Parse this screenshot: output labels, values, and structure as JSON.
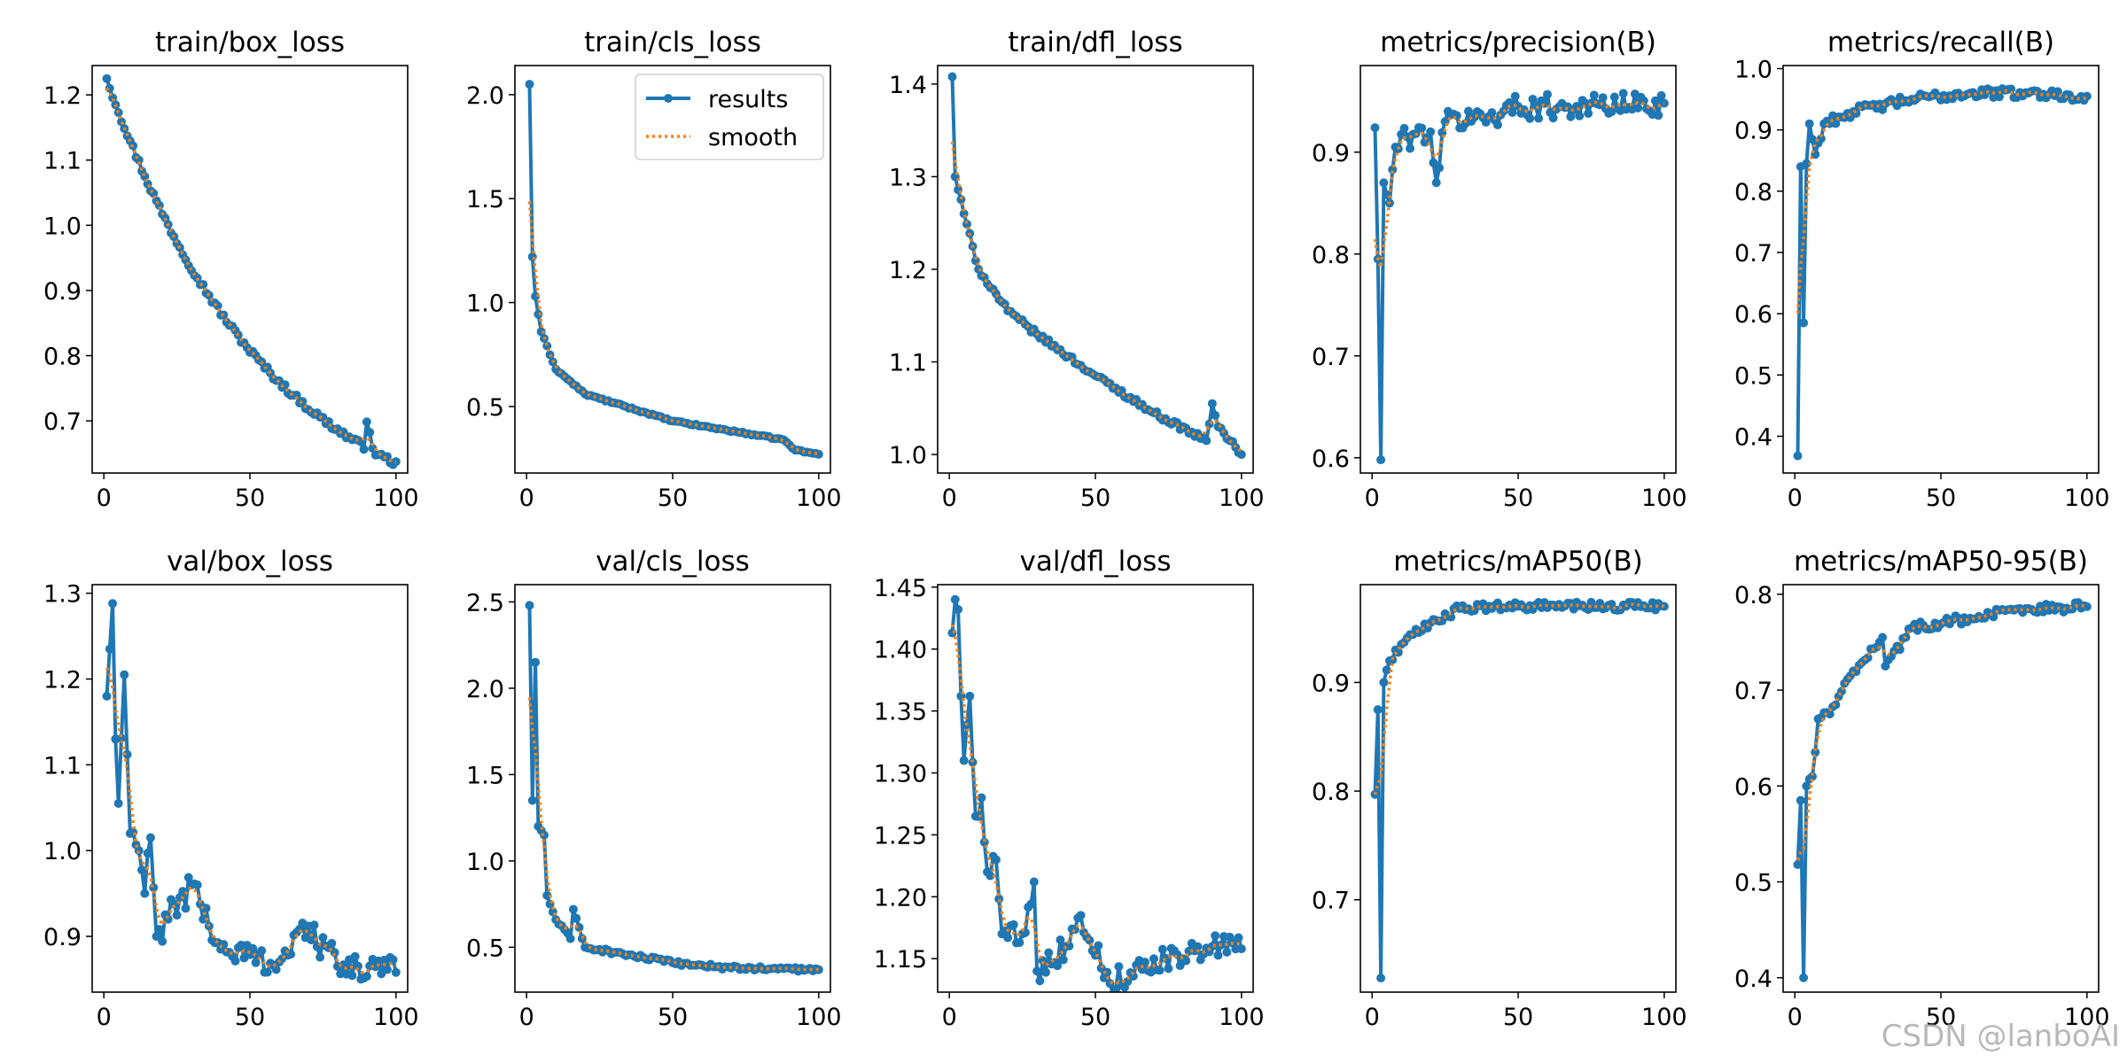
{
  "watermark": "CSDN @lanboAI",
  "colors": {
    "results": "#1f77b4",
    "smooth": "#ff7f0e",
    "axes": "#000000"
  },
  "legend": {
    "results_label": "results",
    "smooth_label": "smooth"
  },
  "chart_data": [
    {
      "type": "line",
      "title": "train/box_loss",
      "xlim": [
        -4,
        104
      ],
      "ylim": [
        0.62,
        1.245
      ],
      "xticks": [
        0,
        50,
        100
      ],
      "xtick_labels": [
        "0",
        "50",
        "100"
      ],
      "yticks": [
        0.7,
        0.8,
        0.9,
        1.0,
        1.1,
        1.2
      ],
      "ytick_labels": [
        "0.7",
        "0.8",
        "0.9",
        "1.0",
        "1.1",
        "1.2"
      ],
      "legend": false,
      "series": [
        {
          "name": "results",
          "start": 1.225,
          "end": 0.635,
          "shape": "decay",
          "k": 1.8,
          "noise": 0.005,
          "spikes": [
            [
              1,
              0.0
            ],
            [
              90,
              0.045
            ],
            [
              91,
              0.03
            ]
          ]
        },
        {
          "name": "smooth",
          "smooth": true
        }
      ]
    },
    {
      "type": "line",
      "title": "train/cls_loss",
      "xlim": [
        -4,
        104
      ],
      "ylim": [
        0.18,
        2.14
      ],
      "xticks": [
        0,
        50,
        100
      ],
      "xtick_labels": [
        "0",
        "50",
        "100"
      ],
      "yticks": [
        0.5,
        1.0,
        1.5,
        2.0
      ],
      "ytick_labels": [
        "0.5",
        "1.0",
        "1.5",
        "2.0"
      ],
      "legend": true,
      "series": [
        {
          "name": "results",
          "start": 2.05,
          "end": 0.27,
          "shape": "fastdecay",
          "k": 8,
          "noise": 0.004,
          "anchors": [
            [
              1,
              2.05
            ],
            [
              2,
              1.22
            ],
            [
              3,
              1.03
            ],
            [
              5,
              0.86
            ],
            [
              10,
              0.68
            ],
            [
              20,
              0.56
            ],
            [
              50,
              0.43
            ],
            [
              88,
              0.34
            ],
            [
              92,
              0.29
            ],
            [
              100,
              0.27
            ]
          ]
        },
        {
          "name": "smooth",
          "smooth": true
        }
      ]
    },
    {
      "type": "line",
      "title": "train/dfl_loss",
      "xlim": [
        -4,
        104
      ],
      "ylim": [
        0.98,
        1.42
      ],
      "xticks": [
        0,
        50,
        100
      ],
      "xtick_labels": [
        "0",
        "50",
        "100"
      ],
      "yticks": [
        1.0,
        1.1,
        1.2,
        1.3,
        1.4
      ],
      "ytick_labels": [
        "1.0",
        "1.1",
        "1.2",
        "1.3",
        "1.4"
      ],
      "legend": false,
      "series": [
        {
          "name": "results",
          "start": 1.408,
          "end": 1.0,
          "shape": "anchors",
          "noise": 0.003,
          "anchors": [
            [
              1,
              1.408
            ],
            [
              2,
              1.3
            ],
            [
              5,
              1.26
            ],
            [
              10,
              1.2
            ],
            [
              20,
              1.155
            ],
            [
              30,
              1.13
            ],
            [
              50,
              1.085
            ],
            [
              70,
              1.045
            ],
            [
              88,
              1.015
            ],
            [
              90,
              1.055
            ],
            [
              92,
              1.03
            ],
            [
              96,
              1.015
            ],
            [
              100,
              1.0
            ]
          ]
        },
        {
          "name": "smooth",
          "smooth": true
        }
      ]
    },
    {
      "type": "line",
      "title": "metrics/precision(B)",
      "xlim": [
        -4,
        104
      ],
      "ylim": [
        0.585,
        0.985
      ],
      "xticks": [
        0,
        50,
        100
      ],
      "xtick_labels": [
        "0",
        "50",
        "100"
      ],
      "yticks": [
        0.6,
        0.7,
        0.8,
        0.9
      ],
      "ytick_labels": [
        "0.6",
        "0.7",
        "0.8",
        "0.9"
      ],
      "legend": false,
      "series": [
        {
          "name": "results",
          "shape": "anchors",
          "noise": 0.012,
          "anchors": [
            [
              1,
              0.924
            ],
            [
              2,
              0.795
            ],
            [
              3,
              0.598
            ],
            [
              4,
              0.87
            ],
            [
              6,
              0.85
            ],
            [
              8,
              0.905
            ],
            [
              12,
              0.915
            ],
            [
              20,
              0.92
            ],
            [
              22,
              0.87
            ],
            [
              25,
              0.93
            ],
            [
              40,
              0.935
            ],
            [
              50,
              0.945
            ],
            [
              70,
              0.945
            ],
            [
              100,
              0.948
            ]
          ]
        },
        {
          "name": "smooth",
          "smooth": true
        }
      ]
    },
    {
      "type": "line",
      "title": "metrics/recall(B)",
      "xlim": [
        -4,
        104
      ],
      "ylim": [
        0.34,
        1.005
      ],
      "xticks": [
        0,
        50,
        100
      ],
      "xtick_labels": [
        "0",
        "50",
        "100"
      ],
      "yticks": [
        0.4,
        0.5,
        0.6,
        0.7,
        0.8,
        0.9,
        1.0
      ],
      "ytick_labels": [
        "0.4",
        "0.5",
        "0.6",
        "0.7",
        "0.8",
        "0.9",
        "1.0"
      ],
      "legend": false,
      "series": [
        {
          "name": "results",
          "shape": "anchors",
          "noise": 0.008,
          "anchors": [
            [
              1,
              0.368
            ],
            [
              2,
              0.84
            ],
            [
              3,
              0.585
            ],
            [
              4,
              0.845
            ],
            [
              5,
              0.91
            ],
            [
              7,
              0.86
            ],
            [
              10,
              0.91
            ],
            [
              20,
              0.93
            ],
            [
              40,
              0.95
            ],
            [
              60,
              0.96
            ],
            [
              80,
              0.96
            ],
            [
              100,
              0.955
            ]
          ]
        },
        {
          "name": "smooth",
          "smooth": true
        }
      ]
    },
    {
      "type": "line",
      "title": "val/box_loss",
      "xlim": [
        -4,
        104
      ],
      "ylim": [
        0.835,
        1.31
      ],
      "xticks": [
        0,
        50,
        100
      ],
      "xtick_labels": [
        "0",
        "50",
        "100"
      ],
      "yticks": [
        0.9,
        1.0,
        1.1,
        1.2,
        1.3
      ],
      "ytick_labels": [
        "0.9",
        "1.0",
        "1.1",
        "1.2",
        "1.3"
      ],
      "legend": false,
      "series": [
        {
          "name": "results",
          "shape": "anchors",
          "noise": 0.018,
          "anchors": [
            [
              1,
              1.18
            ],
            [
              2,
              1.235
            ],
            [
              3,
              1.288
            ],
            [
              4,
              1.13
            ],
            [
              5,
              1.055
            ],
            [
              7,
              1.205
            ],
            [
              9,
              1.02
            ],
            [
              12,
              1.0
            ],
            [
              14,
              0.95
            ],
            [
              16,
              1.015
            ],
            [
              18,
              0.9
            ],
            [
              22,
              0.92
            ],
            [
              30,
              0.96
            ],
            [
              40,
              0.885
            ],
            [
              60,
              0.87
            ],
            [
              70,
              0.912
            ],
            [
              80,
              0.865
            ],
            [
              100,
              0.858
            ]
          ]
        },
        {
          "name": "smooth",
          "smooth": true
        }
      ]
    },
    {
      "type": "line",
      "title": "val/cls_loss",
      "xlim": [
        -4,
        104
      ],
      "ylim": [
        0.24,
        2.6
      ],
      "xticks": [
        0,
        50,
        100
      ],
      "xtick_labels": [
        "0",
        "50",
        "100"
      ],
      "yticks": [
        0.5,
        1.0,
        1.5,
        2.0,
        2.5
      ],
      "ytick_labels": [
        "0.5",
        "1.0",
        "1.5",
        "2.0",
        "2.5"
      ],
      "legend": false,
      "series": [
        {
          "name": "results",
          "shape": "anchors",
          "noise": 0.012,
          "anchors": [
            [
              1,
              2.48
            ],
            [
              2,
              1.35
            ],
            [
              3,
              2.15
            ],
            [
              4,
              1.2
            ],
            [
              6,
              1.15
            ],
            [
              7,
              0.8
            ],
            [
              10,
              0.66
            ],
            [
              15,
              0.55
            ],
            [
              16,
              0.72
            ],
            [
              20,
              0.5
            ],
            [
              30,
              0.47
            ],
            [
              50,
              0.41
            ],
            [
              70,
              0.38
            ],
            [
              100,
              0.37
            ]
          ]
        },
        {
          "name": "smooth",
          "smooth": true
        }
      ]
    },
    {
      "type": "line",
      "title": "val/dfl_loss",
      "xlim": [
        -4,
        104
      ],
      "ylim": [
        1.123,
        1.452
      ],
      "xticks": [
        0,
        50,
        100
      ],
      "xtick_labels": [
        "0",
        "50",
        "100"
      ],
      "yticks": [
        1.15,
        1.2,
        1.25,
        1.3,
        1.35,
        1.4,
        1.45
      ],
      "ytick_labels": [
        "1.15",
        "1.20",
        "1.25",
        "1.30",
        "1.35",
        "1.40",
        "1.45"
      ],
      "legend": false,
      "series": [
        {
          "name": "results",
          "shape": "anchors",
          "noise": 0.01,
          "anchors": [
            [
              1,
              1.413
            ],
            [
              2,
              1.44
            ],
            [
              3,
              1.432
            ],
            [
              4,
              1.362
            ],
            [
              5,
              1.31
            ],
            [
              7,
              1.362
            ],
            [
              9,
              1.265
            ],
            [
              11,
              1.28
            ],
            [
              13,
              1.22
            ],
            [
              16,
              1.23
            ],
            [
              18,
              1.17
            ],
            [
              25,
              1.17
            ],
            [
              29,
              1.212
            ],
            [
              30,
              1.14
            ],
            [
              40,
              1.16
            ],
            [
              45,
              1.185
            ],
            [
              55,
              1.13
            ],
            [
              70,
              1.15
            ],
            [
              80,
              1.15
            ],
            [
              90,
              1.16
            ],
            [
              100,
              1.158
            ]
          ]
        },
        {
          "name": "smooth",
          "smooth": true
        }
      ]
    },
    {
      "type": "line",
      "title": "metrics/mAP50(B)",
      "xlim": [
        -4,
        104
      ],
      "ylim": [
        0.615,
        0.99
      ],
      "xticks": [
        0,
        50,
        100
      ],
      "xtick_labels": [
        "0",
        "50",
        "100"
      ],
      "yticks": [
        0.7,
        0.8,
        0.9
      ],
      "ytick_labels": [
        "0.7",
        "0.8",
        "0.9"
      ],
      "legend": false,
      "series": [
        {
          "name": "results",
          "shape": "anchors",
          "noise": 0.004,
          "anchors": [
            [
              1,
              0.797
            ],
            [
              2,
              0.875
            ],
            [
              3,
              0.628
            ],
            [
              4,
              0.9
            ],
            [
              6,
              0.92
            ],
            [
              10,
              0.935
            ],
            [
              20,
              0.955
            ],
            [
              30,
              0.968
            ],
            [
              50,
              0.97
            ],
            [
              100,
              0.97
            ]
          ]
        },
        {
          "name": "smooth",
          "smooth": true
        }
      ]
    },
    {
      "type": "line",
      "title": "metrics/mAP50-95(B)",
      "xlim": [
        -4,
        104
      ],
      "ylim": [
        0.385,
        0.81
      ],
      "xticks": [
        0,
        50,
        100
      ],
      "xtick_labels": [
        "0",
        "50",
        "100"
      ],
      "yticks": [
        0.4,
        0.5,
        0.6,
        0.7,
        0.8
      ],
      "ytick_labels": [
        "0.4",
        "0.5",
        "0.6",
        "0.7",
        "0.8"
      ],
      "legend": false,
      "series": [
        {
          "name": "results",
          "shape": "anchors",
          "noise": 0.005,
          "anchors": [
            [
              1,
              0.518
            ],
            [
              2,
              0.585
            ],
            [
              3,
              0.4
            ],
            [
              4,
              0.6
            ],
            [
              6,
              0.61
            ],
            [
              8,
              0.67
            ],
            [
              12,
              0.675
            ],
            [
              20,
              0.72
            ],
            [
              30,
              0.755
            ],
            [
              31,
              0.725
            ],
            [
              40,
              0.765
            ],
            [
              60,
              0.775
            ],
            [
              80,
              0.785
            ],
            [
              100,
              0.787
            ]
          ]
        },
        {
          "name": "smooth",
          "smooth": true
        }
      ]
    }
  ]
}
